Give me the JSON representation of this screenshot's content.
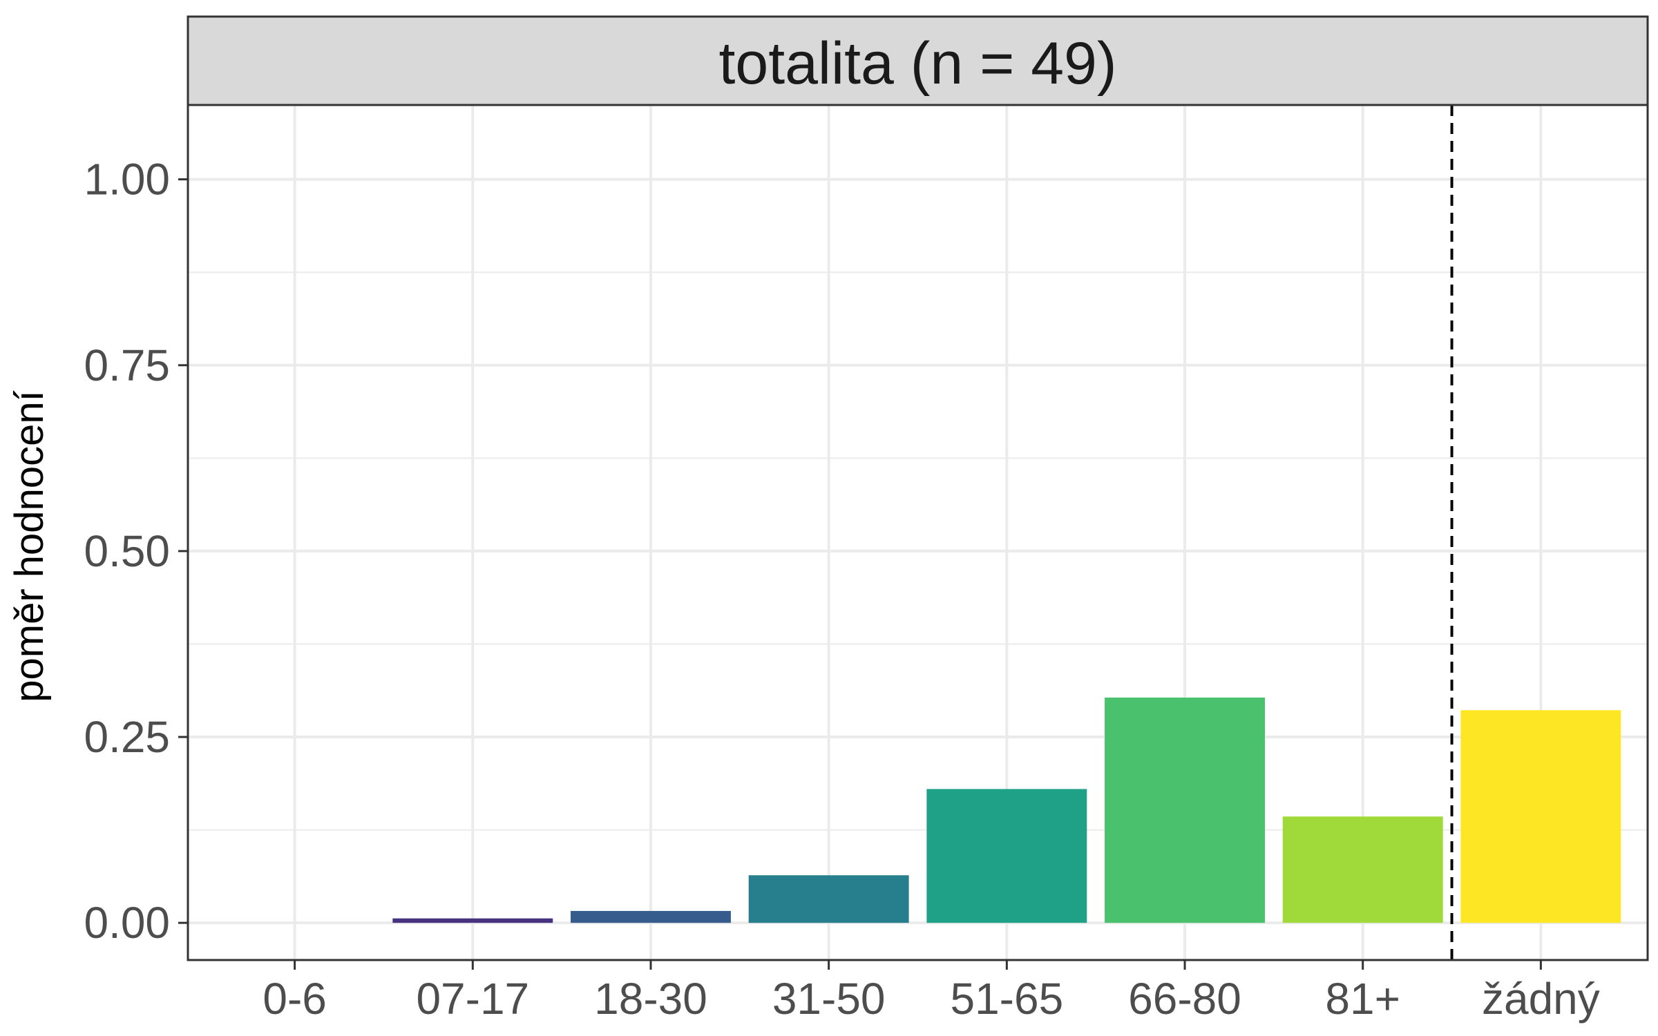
{
  "chart_data": {
    "type": "bar",
    "title": "totalita (n = 49)",
    "xlabel": "",
    "ylabel": "poměr hodnocení",
    "categories": [
      "0-6",
      "07-17",
      "18-30",
      "31-50",
      "51-65",
      "66-80",
      "81+",
      "žádný"
    ],
    "values": [
      0.0,
      0.006,
      0.016,
      0.064,
      0.18,
      0.303,
      0.143,
      0.286
    ],
    "colors": [
      "#440154",
      "#46327e",
      "#365c8d",
      "#277f8e",
      "#1fa187",
      "#4ac16d",
      "#9fda3a",
      "#fde725"
    ],
    "ylim": [
      -0.05,
      1.1
    ],
    "yticks": [
      0.0,
      0.25,
      0.5,
      0.75,
      1.0
    ],
    "ytick_labels": [
      "0.00",
      "0.25",
      "0.50",
      "0.75",
      "1.00"
    ],
    "grid": true,
    "reference_line": {
      "between": [
        "81+",
        "žádný"
      ],
      "style": "dashed"
    },
    "colors_ui": {
      "panel_border": "#333333",
      "strip_fill": "#d9d9d9",
      "grid": "#ebebeb",
      "tick_text": "#4d4d4d"
    }
  }
}
